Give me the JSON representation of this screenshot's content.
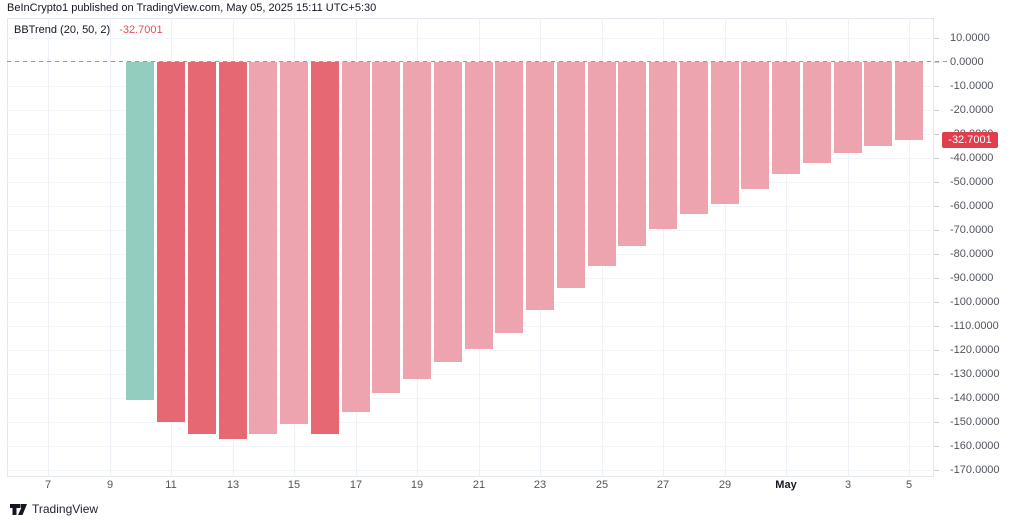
{
  "header": {
    "attribution": "BeInCrypto1 published on TradingView.com, May 05, 2025 15:11 UTC+5:30",
    "indicator_label": "BBTrend (20, 50, 2)",
    "indicator_value": "-32.7001"
  },
  "price_tag": {
    "label": "-32.7001"
  },
  "footer": {
    "brand": "TradingView"
  },
  "colors": {
    "bar_teal": "#92cdc0",
    "bar_red_strong": "#e56873",
    "bar_red_soft": "#eda4ae",
    "tag_red": "#e03e4c",
    "value_red": "#e0505a"
  },
  "chart_data": {
    "type": "bar",
    "title": "BBTrend (20, 50, 2)",
    "xlabel": "",
    "ylabel": "",
    "ylim": [
      -170,
      10
    ],
    "grid": true,
    "zero_line": "dashed",
    "legend_position": "none",
    "last_value": -32.7001,
    "y_ticks": [
      {
        "v": 10,
        "label": "10.0000"
      },
      {
        "v": 0,
        "label": "0.0000"
      },
      {
        "v": -10,
        "label": "-10.0000"
      },
      {
        "v": -20,
        "label": "-20.0000"
      },
      {
        "v": -30,
        "label": "-30.0000"
      },
      {
        "v": -40,
        "label": "-40.0000"
      },
      {
        "v": -50,
        "label": "-50.0000"
      },
      {
        "v": -60,
        "label": "-60.0000"
      },
      {
        "v": -70,
        "label": "-70.0000"
      },
      {
        "v": -80,
        "label": "-80.0000"
      },
      {
        "v": -90,
        "label": "-90.0000"
      },
      {
        "v": -100,
        "label": "-100.0000"
      },
      {
        "v": -110,
        "label": "-110.0000"
      },
      {
        "v": -120,
        "label": "-120.0000"
      },
      {
        "v": -130,
        "label": "-130.0000"
      },
      {
        "v": -140,
        "label": "-140.0000"
      },
      {
        "v": -150,
        "label": "-150.0000"
      },
      {
        "v": -160,
        "label": "-160.0000"
      },
      {
        "v": -170,
        "label": "-170.0000"
      }
    ],
    "x_ticks": [
      {
        "label": "7",
        "d": -3
      },
      {
        "label": "9",
        "d": -1
      },
      {
        "label": "11",
        "d": 1
      },
      {
        "label": "13",
        "d": 3
      },
      {
        "label": "15",
        "d": 5
      },
      {
        "label": "17",
        "d": 7
      },
      {
        "label": "19",
        "d": 9
      },
      {
        "label": "21",
        "d": 11
      },
      {
        "label": "23",
        "d": 13
      },
      {
        "label": "25",
        "d": 15
      },
      {
        "label": "27",
        "d": 17
      },
      {
        "label": "29",
        "d": 19
      },
      {
        "label": "May",
        "d": 21,
        "bold": true
      },
      {
        "label": "3",
        "d": 23
      },
      {
        "label": "5",
        "d": 25
      }
    ],
    "bars": [
      {
        "date": "Apr 10",
        "value": -141,
        "tone": "teal"
      },
      {
        "date": "Apr 11",
        "value": -150,
        "tone": "strong"
      },
      {
        "date": "Apr 12",
        "value": -155,
        "tone": "strong"
      },
      {
        "date": "Apr 13",
        "value": -157,
        "tone": "strong"
      },
      {
        "date": "Apr 14",
        "value": -155,
        "tone": "soft"
      },
      {
        "date": "Apr 15",
        "value": -151,
        "tone": "soft"
      },
      {
        "date": "Apr 16",
        "value": -155,
        "tone": "strong"
      },
      {
        "date": "Apr 17",
        "value": -146,
        "tone": "soft"
      },
      {
        "date": "Apr 18",
        "value": -138,
        "tone": "soft"
      },
      {
        "date": "Apr 19",
        "value": -132,
        "tone": "soft"
      },
      {
        "date": "Apr 20",
        "value": -125,
        "tone": "soft"
      },
      {
        "date": "Apr 21",
        "value": -119.5,
        "tone": "soft"
      },
      {
        "date": "Apr 22",
        "value": -113,
        "tone": "soft"
      },
      {
        "date": "Apr 23",
        "value": -103.5,
        "tone": "soft"
      },
      {
        "date": "Apr 24",
        "value": -94,
        "tone": "soft"
      },
      {
        "date": "Apr 25",
        "value": -85,
        "tone": "soft"
      },
      {
        "date": "Apr 26",
        "value": -76.5,
        "tone": "soft"
      },
      {
        "date": "Apr 27",
        "value": -69.5,
        "tone": "soft"
      },
      {
        "date": "Apr 28",
        "value": -63.5,
        "tone": "soft"
      },
      {
        "date": "Apr 29",
        "value": -59,
        "tone": "soft"
      },
      {
        "date": "Apr 30",
        "value": -53,
        "tone": "soft"
      },
      {
        "date": "May 1",
        "value": -46.5,
        "tone": "soft"
      },
      {
        "date": "May 2",
        "value": -42,
        "tone": "soft"
      },
      {
        "date": "May 3",
        "value": -38,
        "tone": "soft"
      },
      {
        "date": "May 4",
        "value": -35,
        "tone": "soft"
      },
      {
        "date": "May 5",
        "value": -32.7001,
        "tone": "soft"
      }
    ]
  }
}
